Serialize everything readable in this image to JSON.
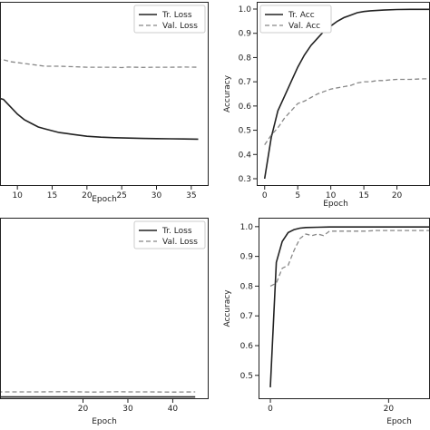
{
  "colors": {
    "train": "#222222",
    "val": "#888888",
    "frame": "#222222"
  },
  "chart_data": [
    {
      "type": "line",
      "position": "top-left",
      "xlabel": "Epoch",
      "ylabel": "",
      "xlim": [
        7.5,
        37.5
      ],
      "ylim": [
        0.0,
        1.0
      ],
      "xticks": [
        10,
        15,
        20,
        25,
        30,
        35
      ],
      "yticks": [],
      "legend": "top-right",
      "series": [
        {
          "name": "Tr. Loss",
          "style": "solid",
          "x": [
            7,
            8,
            9,
            10,
            11,
            12,
            13,
            14,
            15,
            16,
            17,
            18,
            19,
            20,
            22,
            24,
            26,
            28,
            30,
            32,
            34,
            36
          ],
          "y": [
            0.48,
            0.47,
            0.43,
            0.39,
            0.36,
            0.34,
            0.32,
            0.31,
            0.3,
            0.29,
            0.285,
            0.28,
            0.275,
            0.27,
            0.265,
            0.262,
            0.26,
            0.258,
            0.257,
            0.256,
            0.255,
            0.254
          ]
        },
        {
          "name": "Val. Loss",
          "style": "dashed",
          "x": [
            7,
            8,
            9,
            10,
            11,
            12,
            13,
            14,
            15,
            16,
            18,
            20,
            22,
            24,
            25,
            26,
            28,
            30,
            32,
            34,
            36
          ],
          "y": [
            0.69,
            0.685,
            0.675,
            0.67,
            0.665,
            0.66,
            0.655,
            0.65,
            0.65,
            0.65,
            0.648,
            0.645,
            0.645,
            0.645,
            0.643,
            0.646,
            0.644,
            0.645,
            0.645,
            0.646,
            0.645
          ]
        }
      ]
    },
    {
      "type": "line",
      "position": "top-right",
      "xlabel": "Epoch",
      "ylabel": "Accuracy",
      "xlim": [
        -1.2,
        25
      ],
      "ylim": [
        0.27,
        1.03
      ],
      "xticks": [
        0,
        5,
        10,
        15,
        20
      ],
      "yticks": [
        0.3,
        0.4,
        0.5,
        0.6,
        0.7,
        0.8,
        0.9,
        1.0
      ],
      "legend": "top-left",
      "series": [
        {
          "name": "Tr. Acc",
          "style": "solid",
          "x": [
            0,
            1,
            2,
            3,
            4,
            5,
            6,
            7,
            8,
            9,
            10,
            11,
            12,
            13,
            14,
            15,
            16,
            18,
            20,
            22,
            24,
            25
          ],
          "y": [
            0.3,
            0.47,
            0.58,
            0.64,
            0.7,
            0.76,
            0.81,
            0.85,
            0.88,
            0.91,
            0.93,
            0.95,
            0.965,
            0.975,
            0.985,
            0.99,
            0.993,
            0.996,
            0.998,
            0.999,
            0.999,
            0.999
          ]
        },
        {
          "name": "Val. Acc",
          "style": "dashed",
          "x": [
            0,
            1,
            2,
            3,
            4,
            5,
            6,
            7,
            8,
            9,
            10,
            11,
            12,
            13,
            14,
            15,
            16,
            17,
            18,
            19,
            20,
            22,
            24,
            25
          ],
          "y": [
            0.44,
            0.48,
            0.51,
            0.55,
            0.58,
            0.61,
            0.62,
            0.635,
            0.65,
            0.66,
            0.67,
            0.675,
            0.68,
            0.685,
            0.695,
            0.7,
            0.7,
            0.705,
            0.705,
            0.708,
            0.71,
            0.71,
            0.712,
            0.712
          ]
        }
      ]
    },
    {
      "type": "line",
      "position": "bottom-left",
      "xlabel": "Epoch",
      "ylabel": "",
      "xlim": [
        1.5,
        48
      ],
      "ylim": [
        0.0,
        1.0
      ],
      "xticks": [
        20,
        30,
        40
      ],
      "yticks": [],
      "legend": "top-right",
      "series": [
        {
          "name": "Tr. Loss",
          "style": "solid",
          "x": [
            1,
            5,
            10,
            15,
            20,
            25,
            30,
            35,
            40,
            45
          ],
          "y": [
            0.012,
            0.012,
            0.012,
            0.012,
            0.012,
            0.012,
            0.012,
            0.012,
            0.012,
            0.012
          ]
        },
        {
          "name": "Val. Loss",
          "style": "dashed",
          "x": [
            1,
            5,
            10,
            15,
            20,
            22,
            25,
            28,
            30,
            35,
            40,
            45
          ],
          "y": [
            0.04,
            0.04,
            0.04,
            0.041,
            0.04,
            0.039,
            0.04,
            0.041,
            0.04,
            0.04,
            0.039,
            0.04
          ]
        }
      ]
    },
    {
      "type": "line",
      "position": "bottom-right",
      "xlabel": "Epoch",
      "ylabel": "Accuracy",
      "xlim": [
        -2,
        27
      ],
      "ylim": [
        0.42,
        1.03
      ],
      "xticks": [
        0,
        20
      ],
      "yticks": [
        0.5,
        0.6,
        0.7,
        0.8,
        0.9,
        1.0
      ],
      "legend": "none",
      "series": [
        {
          "name": "",
          "style": "solid",
          "x": [
            0,
            1,
            2,
            3,
            4,
            5,
            6,
            8,
            10,
            15,
            20,
            25,
            27
          ],
          "y": [
            0.46,
            0.88,
            0.95,
            0.98,
            0.99,
            0.995,
            0.997,
            0.998,
            0.999,
            0.999,
            0.999,
            0.999,
            0.999
          ]
        },
        {
          "name": "",
          "style": "dashed",
          "x": [
            0,
            1,
            2,
            3,
            4,
            5,
            6,
            7,
            8,
            9,
            10,
            12,
            14,
            16,
            18,
            20,
            22,
            25,
            27
          ],
          "y": [
            0.8,
            0.81,
            0.86,
            0.87,
            0.92,
            0.96,
            0.975,
            0.97,
            0.975,
            0.97,
            0.985,
            0.985,
            0.985,
            0.985,
            0.987,
            0.987,
            0.987,
            0.987,
            0.987
          ]
        }
      ]
    }
  ]
}
